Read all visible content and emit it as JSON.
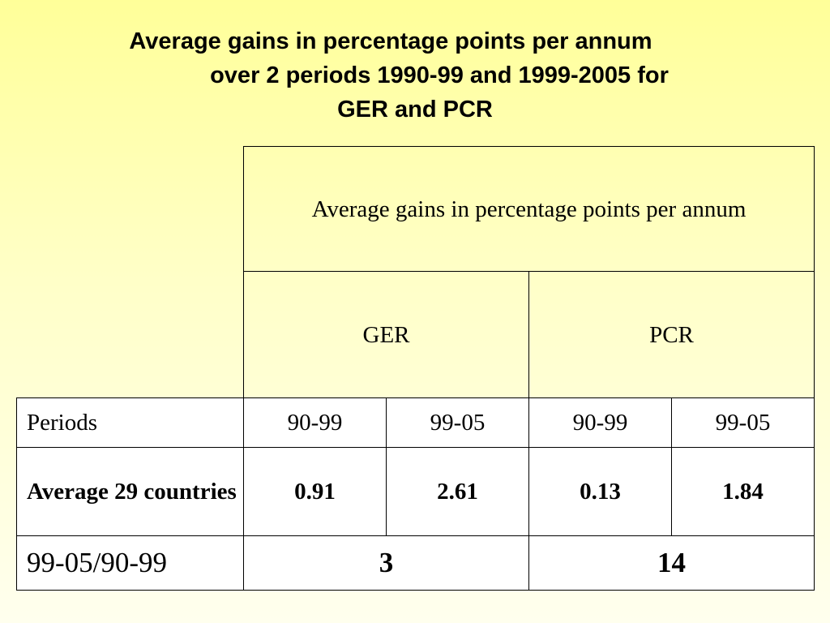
{
  "title": {
    "line1": "Average gains in percentage points per annum",
    "line2": "over 2 periods 1990-99 and 1999-2005 for",
    "line3": "GER and PCR"
  },
  "table": {
    "header": "Average gains in percentage points per annum",
    "groups": [
      "GER",
      "PCR"
    ],
    "periods_row": {
      "label": "Periods",
      "values": [
        "90-99",
        "99-05",
        "90-99",
        "99-05"
      ]
    },
    "average_row": {
      "label": "Average 29 countries",
      "values": [
        "0.91",
        "2.61",
        "0.13",
        "1.84"
      ]
    },
    "ratio_row": {
      "label": "99-05/90-99",
      "values": [
        "3",
        "14"
      ]
    }
  },
  "colors": {
    "background_top": "#FFFF99",
    "background_bottom": "#FFFFEE",
    "border": "#000000"
  }
}
